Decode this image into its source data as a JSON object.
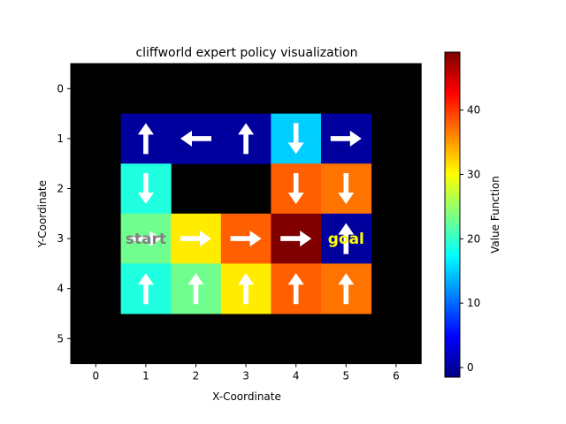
{
  "chart_data": {
    "type": "heatmap",
    "title": "cliffworld expert policy visualization",
    "xlabel": "X-Coordinate",
    "ylabel": "Y-Coordinate",
    "x_ticks": [
      "0",
      "1",
      "2",
      "3",
      "4",
      "5",
      "6"
    ],
    "y_ticks": [
      "0",
      "1",
      "2",
      "3",
      "4",
      "5"
    ],
    "xlim": [
      -0.5,
      6.5
    ],
    "ylim": [
      5.5,
      -0.5
    ],
    "colormap": "jet",
    "colorbar": {
      "label": "Value Function",
      "range": [
        -1.5,
        49
      ],
      "ticks": [
        "0",
        "10",
        "20",
        "30",
        "40"
      ],
      "tick_values": [
        0,
        10,
        20,
        30,
        40
      ]
    },
    "grid": false,
    "masked_color": "#000000",
    "cells": [
      {
        "x": 1,
        "y": 1,
        "value": 0,
        "action": "up"
      },
      {
        "x": 2,
        "y": 1,
        "value": 0,
        "action": "left"
      },
      {
        "x": 3,
        "y": 1,
        "value": 0,
        "action": "up"
      },
      {
        "x": 4,
        "y": 1,
        "value": 15,
        "action": "down"
      },
      {
        "x": 5,
        "y": 1,
        "value": 0,
        "action": "right"
      },
      {
        "x": 1,
        "y": 2,
        "value": 19,
        "action": "down"
      },
      {
        "x": 4,
        "y": 2,
        "value": 38,
        "action": "down"
      },
      {
        "x": 5,
        "y": 2,
        "value": 37,
        "action": "down"
      },
      {
        "x": 1,
        "y": 3,
        "value": 23,
        "action": "right"
      },
      {
        "x": 2,
        "y": 3,
        "value": 31,
        "action": "right"
      },
      {
        "x": 3,
        "y": 3,
        "value": 38,
        "action": "right"
      },
      {
        "x": 4,
        "y": 3,
        "value": 49,
        "action": "right"
      },
      {
        "x": 5,
        "y": 3,
        "value": 0,
        "action": "up"
      },
      {
        "x": 1,
        "y": 4,
        "value": 19,
        "action": "up"
      },
      {
        "x": 2,
        "y": 4,
        "value": 23,
        "action": "up"
      },
      {
        "x": 3,
        "y": 4,
        "value": 31,
        "action": "up"
      },
      {
        "x": 4,
        "y": 4,
        "value": 38,
        "action": "up"
      },
      {
        "x": 5,
        "y": 4,
        "value": 37,
        "action": "up"
      }
    ],
    "annotations": [
      {
        "text": "start",
        "x": 1,
        "y": 3,
        "color": "#808080"
      },
      {
        "text": "goal",
        "x": 5,
        "y": 3,
        "color": "#ffff00"
      }
    ]
  }
}
